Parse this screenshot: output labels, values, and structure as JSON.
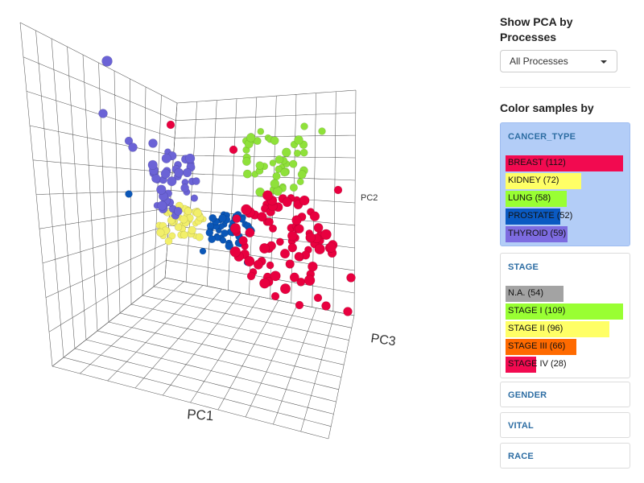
{
  "plot": {
    "axis_labels": {
      "pc1": "PC1",
      "pc2": "PC2",
      "pc3": "PC3"
    },
    "series_colors": {
      "BREAST": "#e8003f",
      "KIDNEY": "#f2ef6a",
      "LUNG": "#8fe13a",
      "PROSTATE": "#0b57b8",
      "THYROID": "#6b63d6"
    }
  },
  "panel": {
    "title": "Show PCA by Processes",
    "dropdown_value": "All Processes",
    "color_title": "Color samples by",
    "groups": [
      {
        "name": "CANCER_TYPE",
        "active": true,
        "items": [
          {
            "label": "BREAST (112)",
            "fraction": 1.0,
            "color": "#f20a50"
          },
          {
            "label": "KIDNEY (72)",
            "fraction": 0.643,
            "color": "#ffff66"
          },
          {
            "label": "LUNG (58)",
            "fraction": 0.518,
            "color": "#99ff33"
          },
          {
            "label": "PROSTATE (52)",
            "fraction": 0.464,
            "color": "#0a5ac2"
          },
          {
            "label": "THYROID (59)",
            "fraction": 0.527,
            "color": "#7d6be0"
          }
        ]
      },
      {
        "name": "STAGE",
        "active": false,
        "items": [
          {
            "label": "N.A. (54)",
            "fraction": 0.495,
            "color": "#a3a3a3"
          },
          {
            "label": "STAGE I (109)",
            "fraction": 1.0,
            "color": "#99ff33"
          },
          {
            "label": "STAGE II (96)",
            "fraction": 0.881,
            "color": "#ffff66"
          },
          {
            "label": "STAGE III (66)",
            "fraction": 0.606,
            "color": "#ff6a00"
          },
          {
            "label": "STAGE IV (28)",
            "fraction": 0.257,
            "color": "#f20a50"
          }
        ]
      },
      {
        "name": "GENDER",
        "active": false,
        "items": []
      },
      {
        "name": "VITAL",
        "active": false,
        "items": []
      },
      {
        "name": "RACE",
        "active": false,
        "items": []
      }
    ]
  }
}
